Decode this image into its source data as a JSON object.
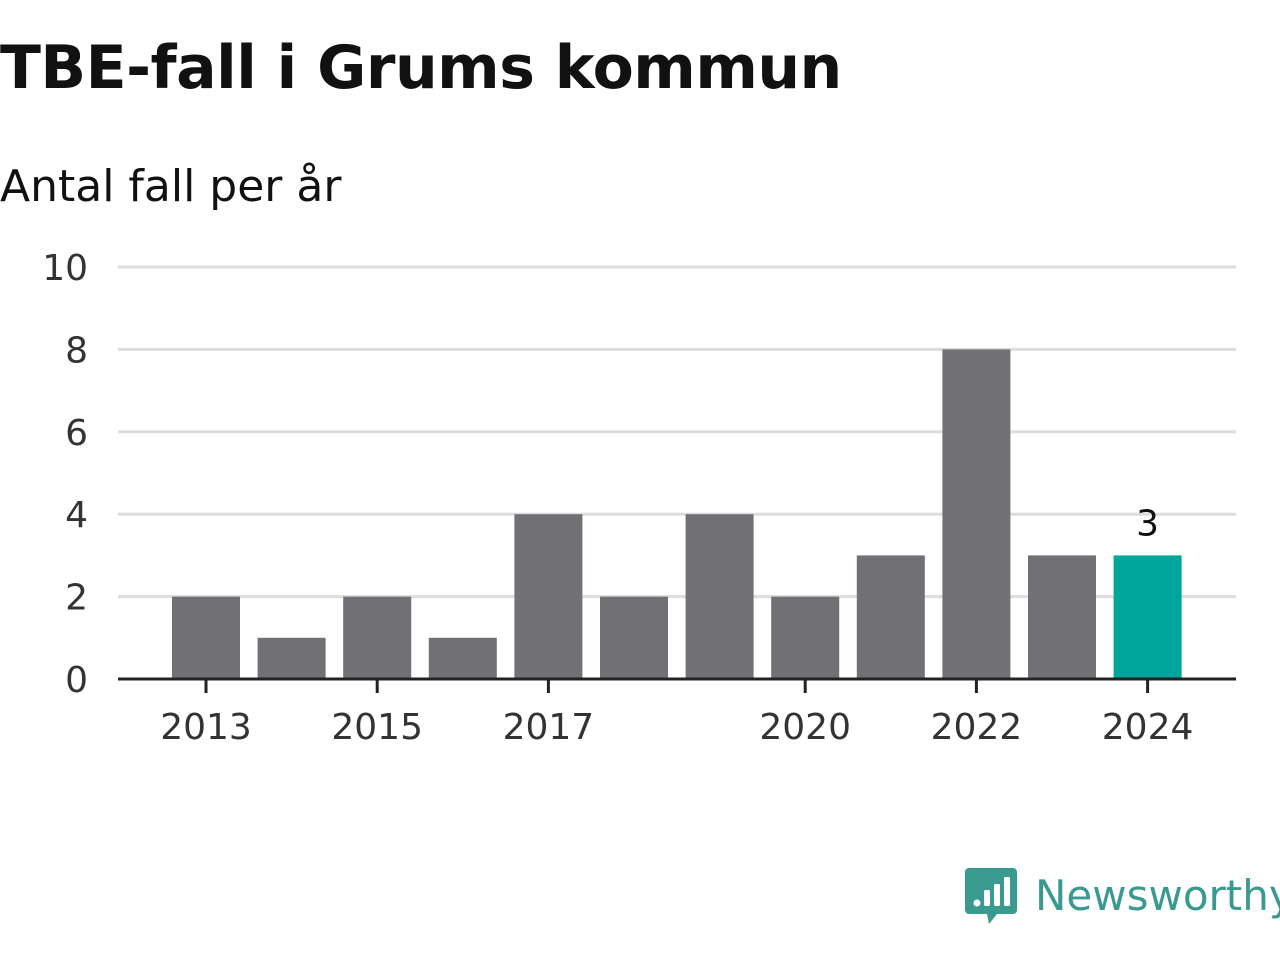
{
  "header": {
    "title": "TBE-fall i Grums kommun",
    "subtitle": "Antal fall per år"
  },
  "chart_data": {
    "type": "bar",
    "title": "TBE-fall i Grums kommun",
    "subtitle": "Antal fall per år",
    "categories": [
      2013,
      2014,
      2015,
      2016,
      2017,
      2018,
      2019,
      2020,
      2021,
      2022,
      2023,
      2024
    ],
    "values": [
      2,
      1,
      2,
      1,
      4,
      2,
      4,
      2,
      3,
      8,
      3,
      3
    ],
    "x_tick_labels": [
      2013,
      2015,
      2017,
      2020,
      2022,
      2024
    ],
    "y_ticks": [
      0,
      2,
      4,
      6,
      8,
      10
    ],
    "ylim": [
      0,
      10
    ],
    "grid": true,
    "highlight": {
      "category": 2024,
      "label": "3"
    },
    "colors": {
      "bar": "#717075",
      "highlight": "#00a69c",
      "grid": "#dddddd",
      "axis": "#222222",
      "tick_text": "#333333"
    }
  },
  "brand": {
    "name": "Newsworthy",
    "icon": "newsworthy-logo-icon",
    "color": "#3a9a90"
  }
}
